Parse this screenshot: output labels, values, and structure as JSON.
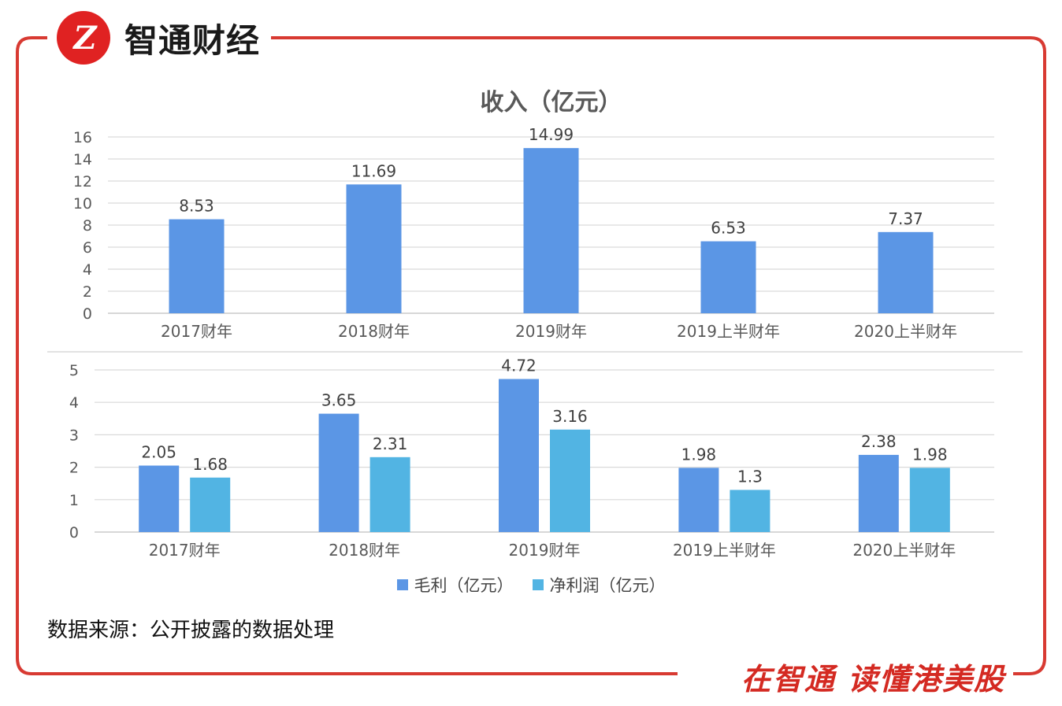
{
  "brand": {
    "logo_mark": "Z",
    "name": "智通财经",
    "slogan": "在智通 读懂港美股"
  },
  "colors": {
    "frame": "#d83a32",
    "bar_primary": "#5b96e5",
    "bar_secondary": "#52b4e3",
    "grid": "#d9d9d9",
    "text": "#555555"
  },
  "source_note": "数据来源：公开披露的数据处理",
  "chart_data": [
    {
      "type": "bar",
      "title": "收入（亿元）",
      "categories": [
        "2017财年",
        "2018财年",
        "2019财年",
        "2019上半财年",
        "2020上半财年"
      ],
      "series": [
        {
          "name": "收入（亿元）",
          "values": [
            8.53,
            11.69,
            14.99,
            6.53,
            7.37
          ]
        }
      ],
      "value_labels": [
        "8.53",
        "11.69",
        "14.99",
        "6.53",
        "7.37"
      ],
      "ylim": [
        0,
        16
      ],
      "yticks": [
        "0",
        "2",
        "4",
        "6",
        "8",
        "10",
        "12",
        "14",
        "16"
      ],
      "grid": true
    },
    {
      "type": "bar",
      "title": "",
      "categories": [
        "2017财年",
        "2018财年",
        "2019财年",
        "2019上半财年",
        "2020上半财年"
      ],
      "series": [
        {
          "name": "毛利（亿元）",
          "values": [
            2.05,
            3.65,
            4.72,
            1.98,
            2.38
          ],
          "labels": [
            "2.05",
            "3.65",
            "4.72",
            "1.98",
            "2.38"
          ]
        },
        {
          "name": "净利润（亿元）",
          "values": [
            1.68,
            2.31,
            3.16,
            1.3,
            1.98
          ],
          "labels": [
            "1.68",
            "2.31",
            "3.16",
            "1.3",
            "1.98"
          ]
        }
      ],
      "ylim": [
        0,
        5
      ],
      "yticks": [
        "0",
        "1",
        "2",
        "3",
        "4",
        "5"
      ],
      "grid": true,
      "legend_position": "bottom"
    }
  ]
}
